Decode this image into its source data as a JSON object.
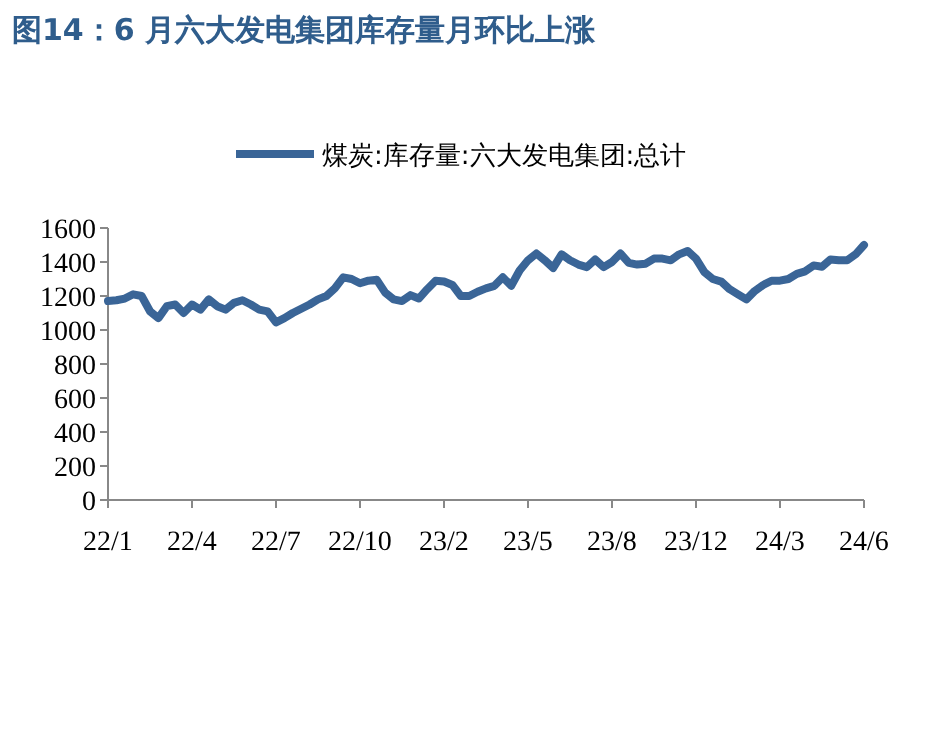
{
  "chart_data": {
    "type": "line",
    "title": "图14：6 月六大发电集团库存量月环比上涨",
    "categories": [
      "22/1",
      null,
      null,
      null,
      null,
      null,
      null,
      null,
      null,
      null,
      "22/4",
      null,
      null,
      null,
      null,
      null,
      null,
      null,
      null,
      null,
      "22/7",
      null,
      null,
      null,
      null,
      null,
      null,
      null,
      null,
      null,
      "22/10",
      null,
      null,
      null,
      null,
      null,
      null,
      null,
      null,
      null,
      "23/2",
      null,
      null,
      null,
      null,
      null,
      null,
      null,
      null,
      null,
      "23/5",
      null,
      null,
      null,
      null,
      null,
      null,
      null,
      null,
      null,
      "23/8",
      null,
      null,
      null,
      null,
      null,
      null,
      null,
      null,
      null,
      "23/12",
      null,
      null,
      null,
      null,
      null,
      null,
      null,
      null,
      null,
      "24/3",
      null,
      null,
      null,
      null,
      null,
      null,
      null,
      null,
      null,
      "24/6"
    ],
    "series": [
      {
        "name": "煤炭:库存量:六大发电集团:总计",
        "color": "#3a6597",
        "values": [
          1170,
          1175,
          1185,
          1210,
          1200,
          1110,
          1070,
          1140,
          1150,
          1100,
          1150,
          1120,
          1180,
          1140,
          1120,
          1160,
          1175,
          1150,
          1120,
          1110,
          1045,
          1070,
          1100,
          1125,
          1150,
          1180,
          1200,
          1245,
          1310,
          1300,
          1275,
          1290,
          1295,
          1220,
          1180,
          1170,
          1205,
          1185,
          1240,
          1290,
          1285,
          1265,
          1200,
          1200,
          1225,
          1245,
          1260,
          1310,
          1260,
          1350,
          1410,
          1450,
          1410,
          1365,
          1445,
          1410,
          1385,
          1370,
          1415,
          1370,
          1400,
          1450,
          1395,
          1385,
          1390,
          1420,
          1420,
          1410,
          1445,
          1465,
          1420,
          1340,
          1300,
          1285,
          1240,
          1210,
          1180,
          1230,
          1265,
          1290,
          1290,
          1300,
          1330,
          1345,
          1380,
          1372,
          1415,
          1410,
          1410,
          1445,
          1500
        ]
      }
    ],
    "ylim": [
      0,
      1600
    ],
    "yticks": [
      0,
      200,
      400,
      600,
      800,
      1000,
      1200,
      1400,
      1600
    ],
    "legend": "top",
    "marker": "none",
    "line_style": "solid"
  }
}
